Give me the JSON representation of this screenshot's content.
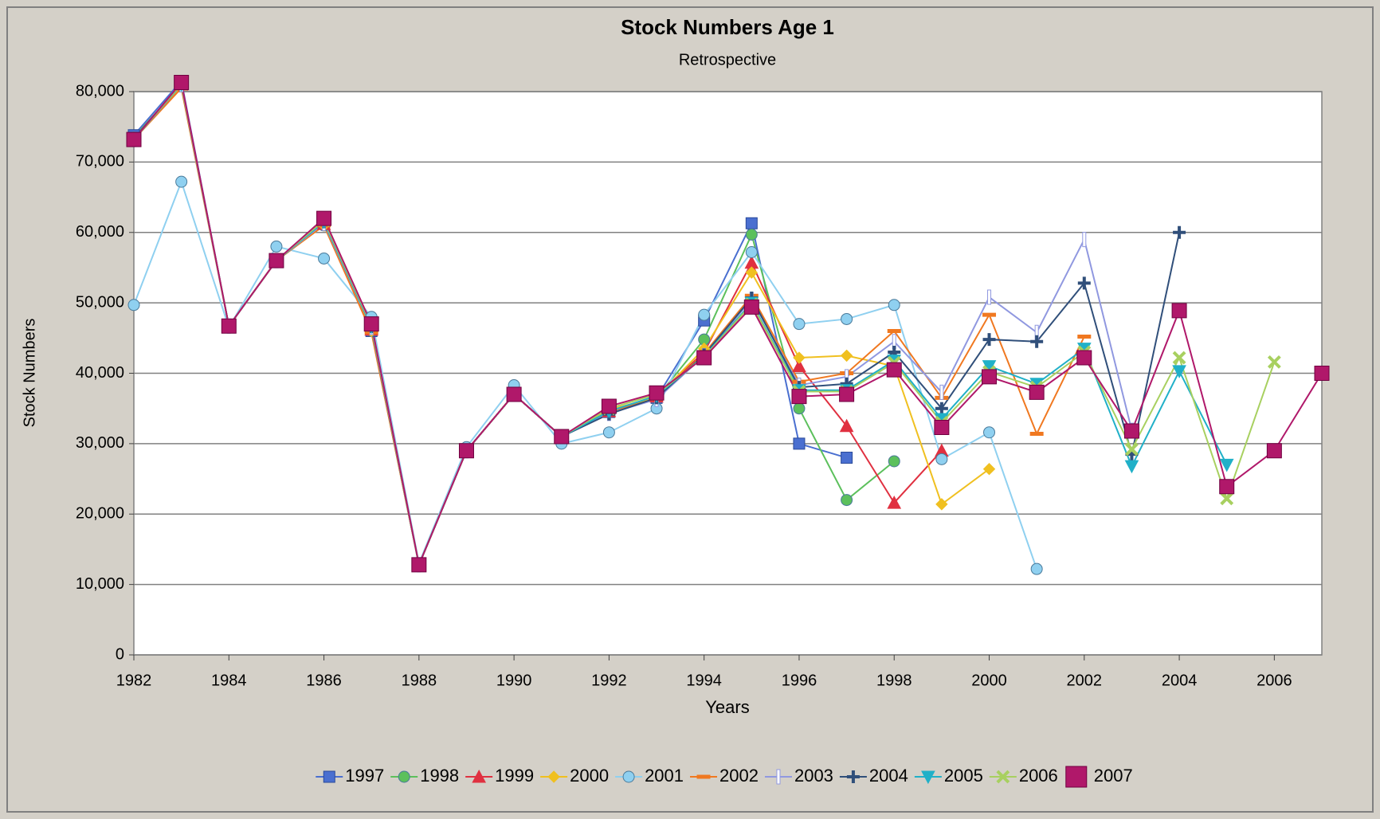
{
  "chart_data": {
    "type": "line",
    "title": "Stock Numbers Age 1",
    "subtitle": "Retrospective",
    "x_label": "Years",
    "y_label": "Stock Numbers",
    "x": [
      1982,
      1983,
      1984,
      1985,
      1986,
      1987,
      1988,
      1989,
      1990,
      1991,
      1992,
      1993,
      1994,
      1995,
      1996,
      1997,
      1998,
      1999,
      2000,
      2001,
      2002,
      2003,
      2004,
      2005,
      2006,
      2007
    ],
    "xlim": [
      1982,
      2007
    ],
    "xticks": [
      1982,
      1984,
      1986,
      1988,
      1990,
      1992,
      1994,
      1996,
      1998,
      2000,
      2002,
      2004,
      2006
    ],
    "ylim": [
      0,
      80000
    ],
    "yticks": [
      0,
      {
        "value": 10000,
        "label": "10,000"
      },
      {
        "value": 20000,
        "label": "20,000"
      },
      {
        "value": 30000,
        "label": "30,000"
      },
      {
        "value": 40000,
        "label": "40,000"
      },
      {
        "value": 50000,
        "label": "50,000"
      },
      {
        "value": 60000,
        "label": "60,000"
      },
      {
        "value": 70000,
        "label": "70,000"
      },
      {
        "value": 80000,
        "label": "80,000"
      }
    ],
    "grid": true,
    "legend": "bottom",
    "series": [
      {
        "name": "1997",
        "color": "#4a6fd0",
        "marker": "square",
        "values": [
          73800,
          81500,
          46700,
          56000,
          61500,
          46000,
          12800,
          29000,
          37000,
          31000,
          34500,
          36500,
          47500,
          61300,
          30000,
          28000,
          null,
          null,
          null,
          null,
          null,
          null,
          null,
          null,
          null,
          null
        ]
      },
      {
        "name": "1998",
        "color": "#5cc05c",
        "marker": "circle",
        "values": [
          73500,
          81000,
          46700,
          56000,
          61000,
          46000,
          12800,
          29000,
          37000,
          31000,
          34500,
          36500,
          44800,
          59700,
          35000,
          22000,
          27500,
          null,
          null,
          null,
          null,
          null,
          null,
          null,
          null,
          null
        ]
      },
      {
        "name": "1999",
        "color": "#e03040",
        "marker": "triangle",
        "values": [
          73300,
          81000,
          46700,
          56000,
          61200,
          46200,
          12800,
          29000,
          37000,
          31000,
          34600,
          36700,
          43000,
          55700,
          41000,
          32500,
          21600,
          29000,
          null,
          null,
          null,
          null,
          null,
          null,
          null,
          null
        ]
      },
      {
        "name": "2000",
        "color": "#f0c020",
        "marker": "diamond",
        "values": [
          73200,
          80800,
          46700,
          56000,
          61000,
          46000,
          12800,
          29000,
          37000,
          31000,
          34800,
          36600,
          43500,
          54300,
          42200,
          42500,
          41000,
          21400,
          26400,
          null,
          null,
          null,
          null,
          null,
          null,
          null
        ]
      },
      {
        "name": "2001",
        "color": "#8fd0f0",
        "marker": "circle",
        "values": [
          49700,
          67200,
          46500,
          58000,
          56300,
          48000,
          13000,
          29500,
          38300,
          30000,
          31600,
          35000,
          48300,
          57200,
          47000,
          47700,
          49700,
          27800,
          31600,
          12200,
          null,
          null,
          null,
          null,
          null,
          null
        ]
      },
      {
        "name": "2002",
        "color": "#f07820",
        "marker": "hbar",
        "values": [
          73200,
          80500,
          46700,
          56000,
          61000,
          45800,
          12800,
          29000,
          37000,
          31000,
          34500,
          36400,
          42800,
          51000,
          38800,
          40000,
          46000,
          36500,
          48300,
          31400,
          45200,
          null,
          null,
          null,
          null,
          null
        ]
      },
      {
        "name": "2003",
        "color": "#9098e0",
        "marker": "vbar",
        "values": [
          73200,
          81000,
          46700,
          56000,
          61300,
          46500,
          12800,
          29000,
          37000,
          31000,
          34300,
          36300,
          42500,
          50500,
          38300,
          39500,
          44500,
          37300,
          50800,
          45800,
          59000,
          31900,
          null,
          null,
          null,
          null
        ]
      },
      {
        "name": "2004",
        "color": "#304f7a",
        "marker": "plus",
        "values": [
          73300,
          81200,
          46700,
          56000,
          61500,
          46600,
          12800,
          29000,
          37000,
          31000,
          34200,
          36500,
          42600,
          50700,
          38000,
          38500,
          43000,
          35000,
          44800,
          44500,
          52800,
          28500,
          60000,
          null,
          null,
          null
        ]
      },
      {
        "name": "2005",
        "color": "#20b0c8",
        "marker": "triangle-down",
        "values": [
          73200,
          81000,
          46700,
          56000,
          61500,
          46600,
          12800,
          29000,
          37000,
          31000,
          34600,
          36800,
          42400,
          50000,
          37600,
          37600,
          41800,
          33500,
          41000,
          38500,
          43500,
          26800,
          40300,
          27000,
          null,
          null
        ]
      },
      {
        "name": "2006",
        "color": "#a8d060",
        "marker": "cross",
        "values": [
          73200,
          81100,
          46700,
          56000,
          61700,
          46800,
          12800,
          29000,
          37000,
          31000,
          35000,
          37000,
          42300,
          49800,
          37400,
          37400,
          41500,
          33000,
          40200,
          38000,
          43000,
          29200,
          42200,
          22200,
          41600,
          null
        ]
      },
      {
        "name": "2007",
        "color": "#b0186a",
        "marker": "big-square",
        "values": [
          73200,
          81300,
          46700,
          56000,
          62000,
          47000,
          12800,
          29000,
          37000,
          31000,
          35300,
          37200,
          42200,
          49400,
          36700,
          37000,
          40500,
          32300,
          39500,
          37300,
          42200,
          31800,
          48900,
          23900,
          29000,
          40000
        ]
      }
    ]
  }
}
